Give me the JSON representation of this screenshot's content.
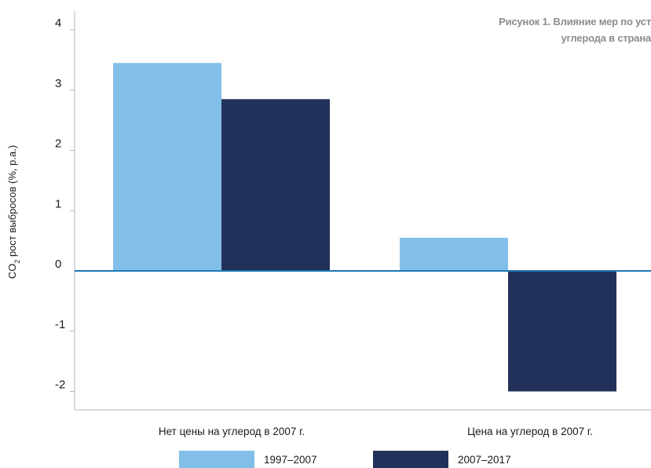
{
  "chart_data": {
    "type": "bar",
    "title_lines": [
      "Рисунок 1. Влияние мер по уст",
      "углерода в страна"
    ],
    "ylabel_main": "CO",
    "ylabel_sub": "2",
    "ylabel_rest": " рост выбросов (%, p.a.)",
    "categories": [
      "Нет цены на углерод в 2007 г.",
      "Цена на углерод в 2007 г."
    ],
    "series": [
      {
        "name": "1997–2007",
        "values": [
          3.45,
          0.55
        ],
        "color": "#82bfe8"
      },
      {
        "name": "2007–2017",
        "values": [
          2.85,
          -2.0
        ],
        "color": "#213159"
      }
    ],
    "ylim": [
      -2.3,
      4.3
    ],
    "yticks": [
      4,
      3,
      2,
      1,
      0,
      -1,
      -2
    ],
    "zero_line_color": "#1f78b4",
    "grid": false,
    "legend_position": "bottom"
  }
}
